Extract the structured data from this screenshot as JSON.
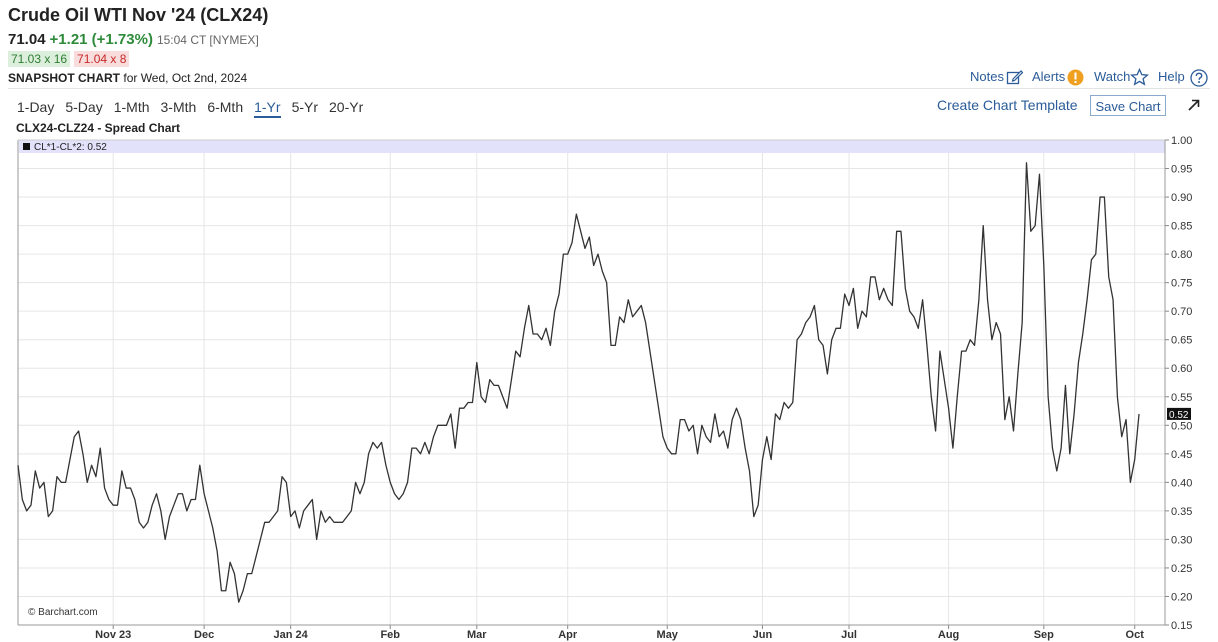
{
  "header": {
    "title": "Crude Oil WTI Nov '24 (CLX24)",
    "price": "71.04",
    "change": "+1.21 (+1.73%)",
    "time": "15:04 CT [NYMEX]",
    "bid": "71.03 x 16",
    "ask": "71.04 x 8",
    "snapshot_label": "SNAPSHOT CHART",
    "snapshot_date": "for Wed, Oct 2nd, 2024"
  },
  "toolbar": {
    "links": [
      "Notes",
      "Alerts",
      "Watch",
      "Help"
    ],
    "periods": [
      {
        "label": "1-Day",
        "selected": false
      },
      {
        "label": "5-Day",
        "selected": false
      },
      {
        "label": "1-Mth",
        "selected": false
      },
      {
        "label": "3-Mth",
        "selected": false
      },
      {
        "label": "6-Mth",
        "selected": false
      },
      {
        "label": "1-Yr",
        "selected": true
      },
      {
        "label": "5-Yr",
        "selected": false
      },
      {
        "label": "20-Yr",
        "selected": false
      }
    ],
    "create_template": "Create Chart Template",
    "save_chart": "Save Chart"
  },
  "chart_data": {
    "type": "line",
    "title": "CLX24-CLZ24 - Spread Chart",
    "legend": "CL*1-CL*2: 0.52",
    "credit": "© Barchart.com",
    "color": "#333333",
    "grid": true,
    "xlim": [
      0,
      265
    ],
    "xticks": [
      {
        "value": 22,
        "label": "Nov 23"
      },
      {
        "value": 43,
        "label": "Dec"
      },
      {
        "value": 63,
        "label": "Jan 24"
      },
      {
        "value": 86,
        "label": "Feb"
      },
      {
        "value": 106,
        "label": "Mar"
      },
      {
        "value": 127,
        "label": "Apr"
      },
      {
        "value": 150,
        "label": "May"
      },
      {
        "value": 172,
        "label": "Jun"
      },
      {
        "value": 192,
        "label": "Jul"
      },
      {
        "value": 215,
        "label": "Aug"
      },
      {
        "value": 237,
        "label": "Sep"
      },
      {
        "value": 258,
        "label": "Oct"
      }
    ],
    "ylim": [
      0.15,
      1.0
    ],
    "yticks": [
      0.15,
      {
        "value": 0.2,
        "label": "0.20"
      },
      0.25,
      {
        "value": 0.3,
        "label": "0.30"
      },
      0.35,
      {
        "value": 0.4,
        "label": "0.40"
      },
      0.45,
      {
        "value": 0.5,
        "label": "0.50"
      },
      0.55,
      {
        "value": 0.6,
        "label": "0.60"
      },
      0.65,
      {
        "value": 0.7,
        "label": "0.70"
      },
      0.75,
      {
        "value": 0.8,
        "label": "0.80"
      },
      0.85,
      {
        "value": 0.9,
        "label": "0.90"
      },
      0.95,
      {
        "value": 1.0,
        "label": "1.00"
      }
    ],
    "values": [
      0.43,
      0.37,
      0.35,
      0.36,
      0.42,
      0.39,
      0.4,
      0.34,
      0.35,
      0.41,
      0.4,
      0.4,
      0.44,
      0.48,
      0.49,
      0.45,
      0.4,
      0.43,
      0.41,
      0.46,
      0.39,
      0.37,
      0.36,
      0.36,
      0.42,
      0.39,
      0.39,
      0.37,
      0.33,
      0.32,
      0.33,
      0.36,
      0.38,
      0.35,
      0.3,
      0.34,
      0.36,
      0.38,
      0.38,
      0.35,
      0.37,
      0.37,
      0.43,
      0.38,
      0.35,
      0.32,
      0.28,
      0.21,
      0.21,
      0.26,
      0.24,
      0.19,
      0.21,
      0.24,
      0.24,
      0.27,
      0.3,
      0.33,
      0.33,
      0.34,
      0.35,
      0.41,
      0.4,
      0.34,
      0.35,
      0.32,
      0.35,
      0.36,
      0.37,
      0.3,
      0.35,
      0.33,
      0.34,
      0.33,
      0.33,
      0.33,
      0.34,
      0.35,
      0.4,
      0.38,
      0.4,
      0.45,
      0.47,
      0.46,
      0.47,
      0.43,
      0.4,
      0.38,
      0.37,
      0.38,
      0.4,
      0.46,
      0.46,
      0.45,
      0.47,
      0.45,
      0.48,
      0.5,
      0.5,
      0.5,
      0.52,
      0.46,
      0.53,
      0.53,
      0.54,
      0.54,
      0.61,
      0.55,
      0.54,
      0.58,
      0.57,
      0.57,
      0.55,
      0.53,
      0.58,
      0.63,
      0.62,
      0.67,
      0.71,
      0.66,
      0.66,
      0.65,
      0.67,
      0.64,
      0.7,
      0.73,
      0.8,
      0.8,
      0.82,
      0.87,
      0.84,
      0.81,
      0.83,
      0.78,
      0.8,
      0.77,
      0.75,
      0.64,
      0.64,
      0.69,
      0.68,
      0.72,
      0.69,
      0.7,
      0.71,
      0.68,
      0.63,
      0.58,
      0.53,
      0.48,
      0.46,
      0.45,
      0.45,
      0.51,
      0.51,
      0.49,
      0.5,
      0.45,
      0.5,
      0.48,
      0.47,
      0.52,
      0.48,
      0.49,
      0.46,
      0.51,
      0.53,
      0.51,
      0.46,
      0.42,
      0.34,
      0.36,
      0.44,
      0.48,
      0.44,
      0.52,
      0.51,
      0.54,
      0.53,
      0.54,
      0.65,
      0.66,
      0.68,
      0.69,
      0.71,
      0.65,
      0.64,
      0.59,
      0.65,
      0.67,
      0.67,
      0.73,
      0.71,
      0.74,
      0.67,
      0.7,
      0.69,
      0.76,
      0.76,
      0.72,
      0.74,
      0.72,
      0.71,
      0.84,
      0.84,
      0.74,
      0.7,
      0.69,
      0.67,
      0.72,
      0.64,
      0.55,
      0.49,
      0.63,
      0.58,
      0.53,
      0.46,
      0.55,
      0.63,
      0.63,
      0.65,
      0.64,
      0.72,
      0.85,
      0.72,
      0.65,
      0.68,
      0.66,
      0.51,
      0.55,
      0.49,
      0.59,
      0.68,
      0.96,
      0.84,
      0.85,
      0.94,
      0.78,
      0.55,
      0.46,
      0.42,
      0.46,
      0.57,
      0.45,
      0.52,
      0.61,
      0.66,
      0.72,
      0.79,
      0.8,
      0.9,
      0.9,
      0.76,
      0.72,
      0.55,
      0.48,
      0.51,
      0.4,
      0.44,
      0.52
    ]
  }
}
